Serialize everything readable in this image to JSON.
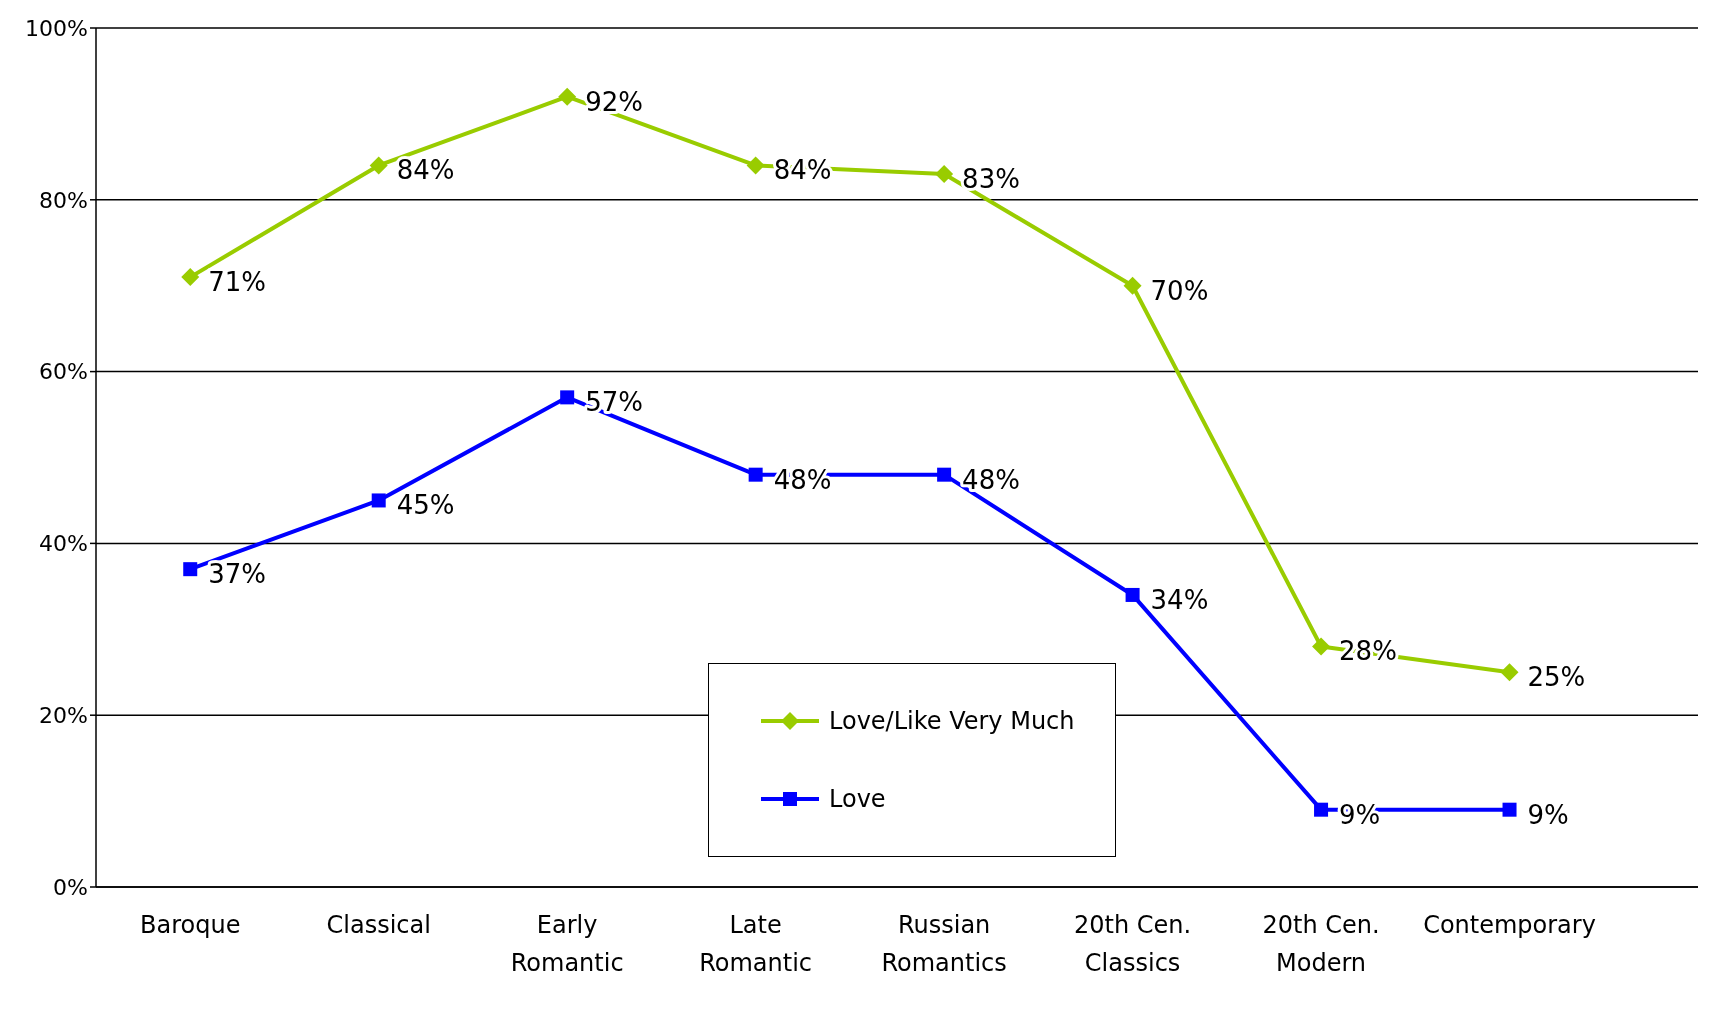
{
  "chart_data": {
    "type": "line",
    "categories": [
      "Baroque",
      "Classical",
      "Early\nRomantic",
      "Late\nRomantic",
      "Russian\nRomantics",
      "20th Cen.\nClassics",
      "20th Cen.\nModern",
      "Contemporary"
    ],
    "series": [
      {
        "name": "Love/Like Very Much",
        "color": "#99cc00",
        "marker": "diamond",
        "values": [
          71,
          84,
          92,
          84,
          83,
          70,
          28,
          25
        ],
        "value_labels": [
          "71%",
          "84%",
          "92%",
          "84%",
          "83%",
          "70%",
          "28%",
          "25%"
        ]
      },
      {
        "name": "Love",
        "color": "#0000ff",
        "marker": "square",
        "values": [
          37,
          45,
          57,
          48,
          48,
          34,
          9,
          9
        ],
        "value_labels": [
          "37%",
          "45%",
          "57%",
          "48%",
          "48%",
          "34%",
          "9%",
          "9%"
        ]
      }
    ],
    "ylim": [
      0,
      100
    ],
    "yticks": [
      {
        "value": 0,
        "label": "0%"
      },
      {
        "value": 20,
        "label": "20%"
      },
      {
        "value": 40,
        "label": "40%"
      },
      {
        "value": 60,
        "label": "60%"
      },
      {
        "value": 80,
        "label": "80%"
      },
      {
        "value": 100,
        "label": "100%"
      }
    ],
    "grid": "y",
    "legend": "bottom",
    "line_style": "solid"
  }
}
